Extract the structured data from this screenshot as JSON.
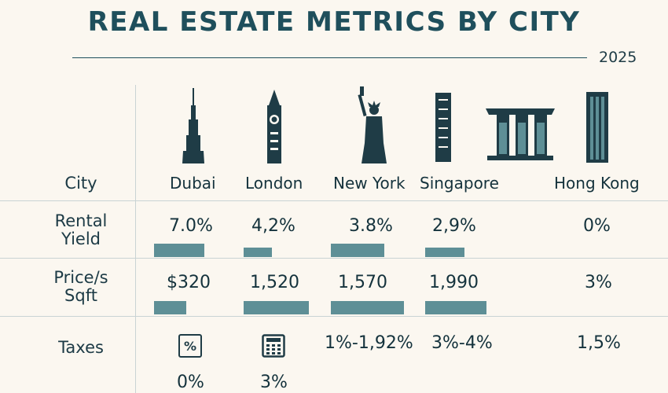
{
  "header": {
    "title": "REAL ESTATE METRICS BY CITY",
    "year": "2025"
  },
  "row_labels": {
    "city": "City",
    "rental_yield_1": "Rental",
    "rental_yield_2": "Yield",
    "price_1": "Price/s",
    "price_2": "Sqft",
    "taxes": "Taxes"
  },
  "cities": {
    "dubai": {
      "name": "Dubai",
      "rental_yield": "7.0%",
      "price": "$320",
      "taxes": "0%",
      "rental_bar": 0.64,
      "price_bar": 0.41,
      "tax_icon": "percent-icon",
      "tax_icon_glyph": "%"
    },
    "london": {
      "name": "London",
      "rental_yield": "4,2%",
      "price": "1,520",
      "taxes": "3%",
      "rental_bar": 0.36,
      "price_bar": 0.83,
      "tax_icon": "calculator-icon"
    },
    "new_york": {
      "name": "New York",
      "rental_yield": "3.8%",
      "price": "1,570",
      "taxes": "1%-1,92%",
      "rental_bar": 0.68,
      "price_bar": 0.93
    },
    "singapore": {
      "name": "Singapore",
      "rental_yield": "2,9%",
      "price": "1,990",
      "taxes": "3%-4%",
      "rental_bar": 0.5,
      "price_bar": 0.78
    },
    "hong_kong": {
      "name": "Hong Kong",
      "rental_yield": "0%",
      "price": "3%",
      "taxes": "1,5%"
    }
  },
  "colors": {
    "accent": "#5e8f96",
    "title": "#1f4f5c",
    "background": "#fbf7f0",
    "landmark": "#1f3c46"
  },
  "icons": [
    "burj-khalifa-icon",
    "big-ben-icon",
    "statue-of-liberty-icon",
    "singapore-tower-icon",
    "marina-bay-sands-icon",
    "hong-kong-tower-icon",
    "percent-icon",
    "calculator-icon"
  ]
}
